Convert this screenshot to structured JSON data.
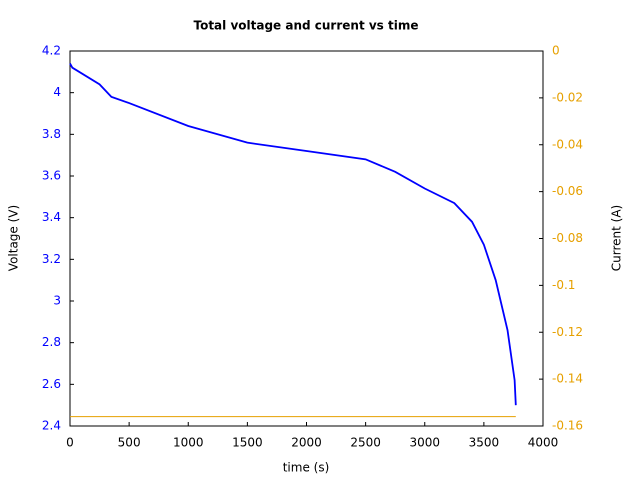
{
  "chart_data": {
    "type": "line",
    "title": "Total voltage and current vs time",
    "x_label": "time (s)",
    "y_label": "Voltage (V)",
    "y2_label": "Current (A)",
    "xlim": [
      0,
      4000
    ],
    "xticks": [
      0,
      500,
      1000,
      1500,
      2000,
      2500,
      3000,
      3500,
      4000
    ],
    "ylim": [
      2.4,
      4.2
    ],
    "yticks": [
      2.4,
      2.6,
      2.8,
      3,
      3.2,
      3.4,
      3.6,
      3.8,
      4,
      4.2
    ],
    "y2lim": [
      -0.16,
      0
    ],
    "y2ticks": [
      -0.16,
      -0.14,
      -0.12,
      -0.1,
      -0.08,
      -0.06,
      -0.04,
      -0.02,
      0
    ],
    "y_color": "#0000ff",
    "y2_color": "#e6a000",
    "series": [
      {
        "color": "#0000ff",
        "x": [
          0,
          20,
          250,
          350,
          500,
          1000,
          1500,
          2000,
          2500,
          2750,
          3000,
          3250,
          3400,
          3500,
          3600,
          3700,
          3760,
          3770
        ],
        "values": [
          4.14,
          4.12,
          4.04,
          3.98,
          3.95,
          3.84,
          3.76,
          3.72,
          3.68,
          3.62,
          3.54,
          3.47,
          3.38,
          3.27,
          3.1,
          2.86,
          2.62,
          2.5
        ]
      },
      {
        "color": "#e6a000",
        "axis": "y2",
        "x": [
          0,
          3770
        ],
        "values": [
          -0.156,
          -0.156
        ]
      }
    ]
  }
}
